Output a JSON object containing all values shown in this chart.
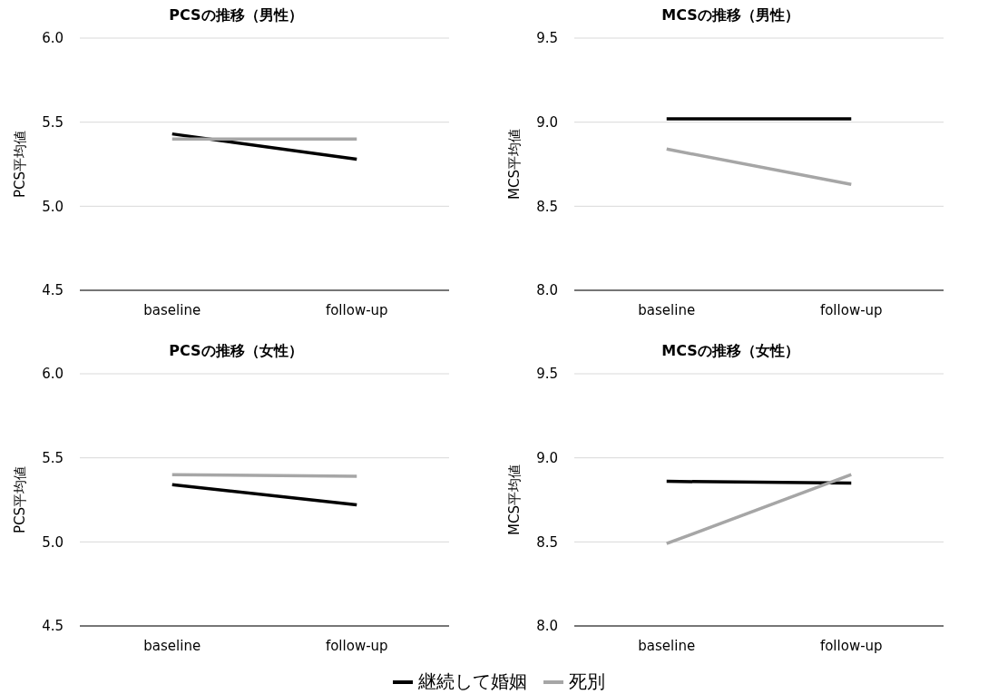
{
  "chart_data": [
    {
      "type": "line",
      "title": "PCSの推移（男性）",
      "ylabel": "PCS平均値",
      "categories": [
        "baseline",
        "follow-up"
      ],
      "ylim": [
        4.5,
        6.0
      ],
      "yticks": [
        {
          "value": 4.5,
          "label": "4.5"
        },
        {
          "value": 5.0,
          "label": "5.0"
        },
        {
          "value": 5.5,
          "label": "5.5"
        },
        {
          "value": 6.0,
          "label": "6.0"
        }
      ],
      "grid": "y",
      "marker": "none",
      "line_style": "solid",
      "series": [
        {
          "color": "#000000",
          "values": [
            5.43,
            5.28
          ]
        },
        {
          "color": "#a6a6a6",
          "values": [
            5.4,
            5.4
          ]
        }
      ]
    },
    {
      "type": "line",
      "title": "MCSの推移（男性）",
      "ylabel": "MCS平均値",
      "categories": [
        "baseline",
        "follow-up"
      ],
      "ylim": [
        8.0,
        9.5
      ],
      "yticks": [
        {
          "value": 8.0,
          "label": "8.0"
        },
        {
          "value": 8.5,
          "label": "8.5"
        },
        {
          "value": 9.0,
          "label": "9.0"
        },
        {
          "value": 9.5,
          "label": "9.5"
        }
      ],
      "grid": "y",
      "marker": "none",
      "line_style": "solid",
      "series": [
        {
          "color": "#000000",
          "values": [
            9.02,
            9.02
          ]
        },
        {
          "color": "#a6a6a6",
          "values": [
            8.84,
            8.63
          ]
        }
      ]
    },
    {
      "type": "line",
      "title": "PCSの推移（女性）",
      "ylabel": "PCS平均値",
      "categories": [
        "baseline",
        "follow-up"
      ],
      "ylim": [
        4.5,
        6.0
      ],
      "yticks": [
        {
          "value": 4.5,
          "label": "4.5"
        },
        {
          "value": 5.0,
          "label": "5.0"
        },
        {
          "value": 5.5,
          "label": "5.5"
        },
        {
          "value": 6.0,
          "label": "6.0"
        }
      ],
      "grid": "y",
      "marker": "none",
      "line_style": "solid",
      "series": [
        {
          "color": "#000000",
          "values": [
            5.34,
            5.22
          ]
        },
        {
          "color": "#a6a6a6",
          "values": [
            5.4,
            5.39
          ]
        }
      ]
    },
    {
      "type": "line",
      "title": "MCSの推移（女性）",
      "ylabel": "MCS平均値",
      "categories": [
        "baseline",
        "follow-up"
      ],
      "ylim": [
        8.0,
        9.5
      ],
      "yticks": [
        {
          "value": 8.0,
          "label": "8.0"
        },
        {
          "value": 8.5,
          "label": "8.5"
        },
        {
          "value": 9.0,
          "label": "9.0"
        },
        {
          "value": 9.5,
          "label": "9.5"
        }
      ],
      "grid": "y",
      "marker": "none",
      "line_style": "solid",
      "legend": "bottom",
      "series": [
        {
          "name": "継続して婚姻",
          "color": "#000000",
          "values": [
            8.86,
            8.85
          ]
        },
        {
          "name": "死別",
          "color": "#a6a6a6",
          "values": [
            8.49,
            8.9
          ]
        }
      ]
    }
  ]
}
